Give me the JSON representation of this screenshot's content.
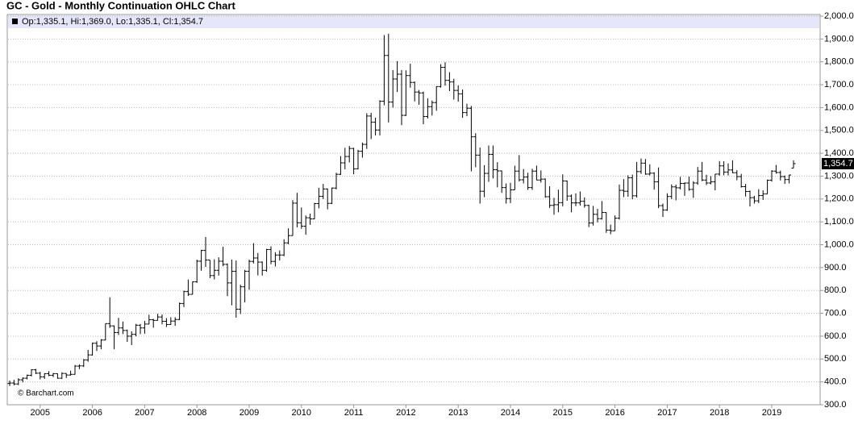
{
  "chart_data": {
    "type": "ohlc",
    "title": "GC - Gold - Monthly Continuation OHLC Chart",
    "info": "Op:1,335.1, Hi:1,369.0, Lo:1,335.1, Cl:1,354.7",
    "source": "© Barchart.com",
    "last_label": "1,354.7",
    "color": "#000000",
    "grid": true,
    "ylim": [
      300,
      2000
    ],
    "yticks": [
      {
        "value": 300,
        "label": "300.0"
      },
      {
        "value": 400,
        "label": "400.0"
      },
      {
        "value": 500,
        "label": "500.0"
      },
      {
        "value": 600,
        "label": "600.0"
      },
      {
        "value": 700,
        "label": "700.0"
      },
      {
        "value": 800,
        "label": "800.0"
      },
      {
        "value": 900,
        "label": "900.0"
      },
      {
        "value": 1000,
        "label": "1,000.0"
      },
      {
        "value": 1100,
        "label": "1,100.0"
      },
      {
        "value": 1200,
        "label": "1,200.0"
      },
      {
        "value": 1300,
        "label": "1,300.0"
      },
      {
        "value": 1400,
        "label": "1,400.0"
      },
      {
        "value": 1500,
        "label": "1,500.0"
      },
      {
        "value": 1600,
        "label": "1,600.0"
      },
      {
        "value": 1700,
        "label": "1,700.0"
      },
      {
        "value": 1800,
        "label": "1,800.0"
      },
      {
        "value": 1900,
        "label": "1,900.0"
      },
      {
        "value": 2000,
        "label": "2,000.0"
      }
    ],
    "categories": [
      null,
      null,
      null,
      null,
      null,
      null,
      null,
      "2005",
      null,
      null,
      null,
      null,
      null,
      null,
      null,
      null,
      null,
      null,
      null,
      "2006",
      null,
      null,
      null,
      null,
      null,
      null,
      null,
      null,
      null,
      null,
      null,
      "2007",
      null,
      null,
      null,
      null,
      null,
      null,
      null,
      null,
      null,
      null,
      null,
      "2008",
      null,
      null,
      null,
      null,
      null,
      null,
      null,
      null,
      null,
      null,
      null,
      "2009",
      null,
      null,
      null,
      null,
      null,
      null,
      null,
      null,
      null,
      null,
      null,
      "2010",
      null,
      null,
      null,
      null,
      null,
      null,
      null,
      null,
      null,
      null,
      null,
      "2011",
      null,
      null,
      null,
      null,
      null,
      null,
      null,
      null,
      null,
      null,
      null,
      "2012",
      null,
      null,
      null,
      null,
      null,
      null,
      null,
      null,
      null,
      null,
      null,
      "2013",
      null,
      null,
      null,
      null,
      null,
      null,
      null,
      null,
      null,
      null,
      null,
      "2014",
      null,
      null,
      null,
      null,
      null,
      null,
      null,
      null,
      null,
      null,
      null,
      "2015",
      null,
      null,
      null,
      null,
      null,
      null,
      null,
      null,
      null,
      null,
      null,
      "2016",
      null,
      null,
      null,
      null,
      null,
      null,
      null,
      null,
      null,
      null,
      null,
      "2017",
      null,
      null,
      null,
      null,
      null,
      null,
      null,
      null,
      null,
      null,
      null,
      "2018",
      null,
      null,
      null,
      null,
      null,
      null,
      null,
      null,
      null,
      null,
      null,
      "2019",
      null,
      null,
      null,
      null,
      null
    ],
    "open": [
      393,
      395,
      391,
      409,
      416,
      429,
      453,
      438,
      422,
      436,
      429,
      436,
      416,
      437,
      430,
      433,
      469,
      470,
      496,
      518,
      569,
      557,
      583,
      655,
      645,
      616,
      636,
      625,
      600,
      608,
      648,
      636,
      653,
      672,
      669,
      684,
      665,
      651,
      666,
      673,
      743,
      795,
      783,
      838,
      928,
      975,
      933,
      865,
      888,
      928,
      914,
      833,
      884,
      718,
      816,
      884,
      927,
      942,
      924,
      888,
      979,
      927,
      955,
      955,
      1008,
      1040,
      1182,
      1096,
      1081,
      1118,
      1113,
      1180,
      1212,
      1244,
      1181,
      1248,
      1308,
      1358,
      1386,
      1421,
      1332,
      1409,
      1439,
      1563,
      1536,
      1502,
      1628,
      1828,
      1624,
      1725,
      1746,
      1566,
      1740,
      1710,
      1668,
      1664,
      1561,
      1604,
      1622,
      1692,
      1776,
      1719,
      1712,
      1675,
      1660,
      1578,
      1597,
      1472,
      1392,
      1234,
      1312,
      1395,
      1328,
      1323,
      1250,
      1202,
      1240,
      1322,
      1284,
      1296,
      1250,
      1322,
      1283,
      1287,
      1210,
      1172,
      1175,
      1184,
      1279,
      1213,
      1183,
      1183,
      1190,
      1172,
      1095,
      1133,
      1114,
      1141,
      1064,
      1061,
      1116,
      1238,
      1234,
      1293,
      1214,
      1320,
      1357,
      1309,
      1313,
      1275,
      1171,
      1152,
      1211,
      1253,
      1249,
      1268,
      1270,
      1242,
      1270,
      1322,
      1283,
      1270,
      1275,
      1309,
      1345,
      1318,
      1327,
      1315,
      1298,
      1254,
      1233,
      1206,
      1192,
      1215,
      1222,
      1282,
      1322,
      1316,
      1298,
      1285,
      1335.1
    ],
    "high": [
      406,
      409,
      416,
      420,
      432,
      455,
      457,
      444,
      438,
      447,
      439,
      437,
      442,
      438,
      449,
      474,
      477,
      500,
      540,
      572,
      578,
      587,
      655,
      770,
      647,
      680,
      664,
      629,
      621,
      654,
      653,
      667,
      694,
      676,
      698,
      695,
      679,
      683,
      683,
      747,
      799,
      848,
      839,
      935,
      978,
      1034,
      933,
      936,
      945,
      991,
      918,
      935,
      931,
      825,
      890,
      935,
      1007,
      964,
      927,
      982,
      993,
      967,
      975,
      1024,
      1072,
      1195,
      1227,
      1163,
      1128,
      1136,
      1183,
      1249,
      1266,
      1246,
      1250,
      1315,
      1388,
      1424,
      1432,
      1424,
      1415,
      1447,
      1575,
      1577,
      1556,
      1632,
      1917,
      1923,
      1764,
      1803,
      1764,
      1763,
      1792,
      1714,
      1677,
      1670,
      1640,
      1631,
      1693,
      1790,
      1798,
      1755,
      1726,
      1697,
      1679,
      1617,
      1607,
      1488,
      1425,
      1348,
      1434,
      1434,
      1361,
      1324,
      1268,
      1271,
      1346,
      1392,
      1331,
      1315,
      1332,
      1346,
      1325,
      1290,
      1256,
      1205,
      1241,
      1308,
      1281,
      1220,
      1225,
      1233,
      1207,
      1175,
      1170,
      1157,
      1191,
      1142,
      1088,
      1128,
      1263,
      1287,
      1304,
      1307,
      1362,
      1377,
      1375,
      1352,
      1317,
      1338,
      1180,
      1225,
      1264,
      1263,
      1297,
      1272,
      1298,
      1278,
      1340,
      1362,
      1306,
      1300,
      1309,
      1366,
      1365,
      1356,
      1369,
      1326,
      1310,
      1266,
      1237,
      1214,
      1243,
      1238,
      1285,
      1326,
      1349,
      1324,
      1303,
      1306,
      1369.0
    ],
    "low": [
      382,
      385,
      386,
      398,
      411,
      424,
      434,
      411,
      413,
      425,
      421,
      414,
      413,
      417,
      428,
      432,
      456,
      465,
      488,
      515,
      535,
      543,
      582,
      636,
      543,
      605,
      609,
      575,
      561,
      599,
      609,
      611,
      652,
      637,
      669,
      652,
      640,
      650,
      645,
      670,
      727,
      776,
      782,
      833,
      886,
      903,
      854,
      848,
      865,
      906,
      775,
      735,
      681,
      697,
      748,
      803,
      918,
      866,
      865,
      882,
      915,
      905,
      931,
      950,
      1002,
      1040,
      1076,
      1070,
      1044,
      1087,
      1112,
      1159,
      1200,
      1155,
      1178,
      1242,
      1305,
      1330,
      1360,
      1308,
      1330,
      1381,
      1419,
      1462,
      1478,
      1478,
      1610,
      1535,
      1600,
      1668,
      1523,
      1563,
      1687,
      1627,
      1612,
      1527,
      1552,
      1565,
      1586,
      1687,
      1696,
      1672,
      1635,
      1626,
      1555,
      1562,
      1321,
      1339,
      1180,
      1208,
      1275,
      1290,
      1251,
      1227,
      1180,
      1182,
      1240,
      1277,
      1268,
      1240,
      1240,
      1282,
      1272,
      1206,
      1161,
      1131,
      1142,
      1168,
      1192,
      1142,
      1169,
      1171,
      1162,
      1077,
      1084,
      1098,
      1110,
      1052,
      1046,
      1061,
      1110,
      1208,
      1210,
      1199,
      1206,
      1310,
      1306,
      1303,
      1241,
      1160,
      1122,
      1148,
      1200,
      1194,
      1242,
      1214,
      1236,
      1205,
      1262,
      1278,
      1261,
      1264,
      1238,
      1302,
      1304,
      1303,
      1313,
      1282,
      1250,
      1211,
      1167,
      1180,
      1182,
      1196,
      1222,
      1276,
      1311,
      1281,
      1266,
      1268,
      1335.1
    ],
    "close": [
      395,
      391,
      409,
      416,
      429,
      453,
      438,
      422,
      436,
      429,
      436,
      416,
      437,
      430,
      433,
      469,
      470,
      496,
      518,
      569,
      557,
      583,
      655,
      645,
      616,
      636,
      625,
      600,
      608,
      648,
      636,
      653,
      672,
      669,
      684,
      665,
      651,
      666,
      673,
      743,
      795,
      783,
      838,
      928,
      975,
      933,
      865,
      888,
      928,
      914,
      833,
      884,
      718,
      816,
      884,
      927,
      942,
      924,
      888,
      979,
      927,
      955,
      955,
      1008,
      1040,
      1182,
      1096,
      1081,
      1118,
      1113,
      1180,
      1212,
      1244,
      1181,
      1248,
      1308,
      1358,
      1386,
      1421,
      1332,
      1409,
      1439,
      1563,
      1536,
      1502,
      1628,
      1828,
      1624,
      1725,
      1746,
      1566,
      1740,
      1710,
      1668,
      1664,
      1561,
      1604,
      1622,
      1692,
      1776,
      1719,
      1712,
      1675,
      1660,
      1578,
      1597,
      1472,
      1392,
      1234,
      1312,
      1395,
      1328,
      1323,
      1250,
      1202,
      1240,
      1322,
      1284,
      1296,
      1250,
      1322,
      1283,
      1287,
      1210,
      1172,
      1175,
      1184,
      1279,
      1213,
      1183,
      1183,
      1190,
      1172,
      1095,
      1133,
      1114,
      1141,
      1064,
      1061,
      1116,
      1238,
      1234,
      1293,
      1214,
      1320,
      1357,
      1309,
      1313,
      1275,
      1171,
      1152,
      1211,
      1253,
      1249,
      1268,
      1270,
      1242,
      1270,
      1322,
      1283,
      1270,
      1275,
      1309,
      1345,
      1318,
      1327,
      1315,
      1298,
      1254,
      1233,
      1206,
      1192,
      1215,
      1222,
      1282,
      1322,
      1316,
      1298,
      1285,
      1305,
      1354.7
    ]
  }
}
